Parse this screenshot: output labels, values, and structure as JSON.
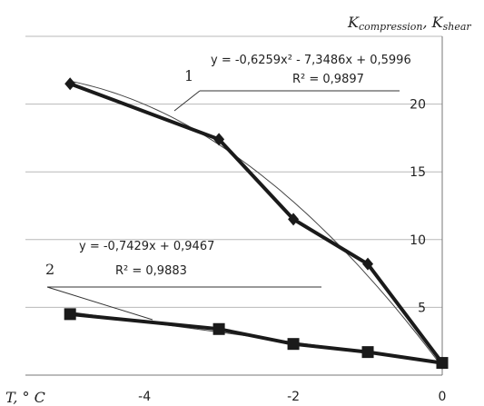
{
  "chart_data": {
    "type": "line",
    "ylabel": "K",
    "ylabel_sub_1": "compression",
    "ylabel_sep": ", K",
    "ylabel_sub_2": "shear",
    "xlabel": "T, ° C",
    "xlim": [
      -5.6,
      0
    ],
    "ylim": [
      0,
      25
    ],
    "x_ticks": [
      "-4",
      "-2",
      "0"
    ],
    "y_ticks": [
      "5",
      "10",
      "15",
      "20"
    ],
    "grid": true,
    "y_axis_side": "right",
    "series": [
      {
        "name": "1",
        "marker": "diamond",
        "x": [
          -5,
          -3,
          -2,
          -1,
          0
        ],
        "y": [
          21.5,
          17.4,
          11.5,
          8.2,
          0.9
        ],
        "trendline": {
          "type": "polynomial",
          "equation": "y = -0,6259x² - 7,3486x + 0,5996",
          "r2": "R² = 0,9897",
          "coeffs": [
            -0.6259,
            -7.3486,
            0.5996
          ]
        }
      },
      {
        "name": "2",
        "marker": "square",
        "x": [
          -5,
          -3,
          -2,
          -1,
          0
        ],
        "y": [
          4.5,
          3.4,
          2.3,
          1.7,
          0.9
        ],
        "trendline": {
          "type": "linear",
          "equation": "y = -0,7429x + 0,9467",
          "r2": "R² = 0,9883",
          "coeffs": [
            -0.7429,
            0.9467
          ]
        }
      }
    ]
  }
}
